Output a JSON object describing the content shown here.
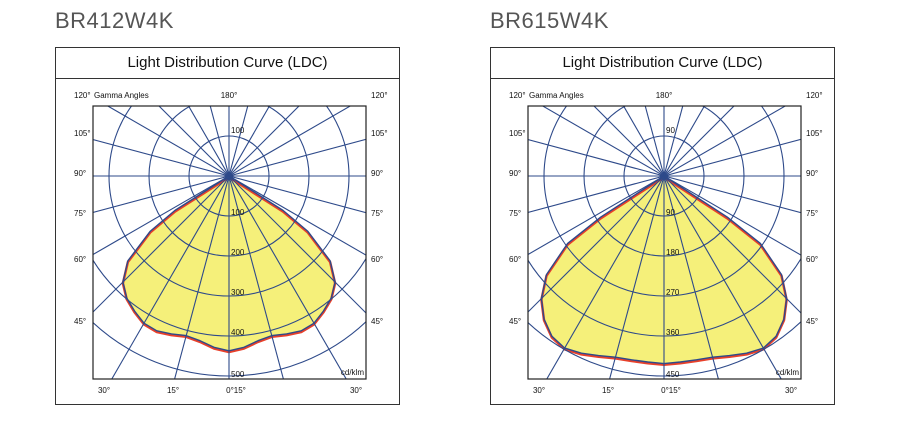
{
  "chart_data": [
    {
      "type": "polar",
      "product": "BR412W4K",
      "title": "Light Distribution Curve (LDC)",
      "axis_caption": "Gamma Angles",
      "unit": "cd/klm",
      "radial_ticks": [
        100,
        200,
        300,
        400,
        500
      ],
      "top_ring_label": "100",
      "angle_labels": {
        "top_left": "120°",
        "top_center": "180°",
        "top_right": "120°",
        "side": [
          "105°",
          "90°",
          "75°",
          "60°",
          "45°"
        ],
        "bottom": [
          "30°",
          "15°",
          "0°15°",
          "30°"
        ]
      },
      "symmetric": true,
      "gamma": [
        0,
        5,
        10,
        15,
        20,
        25,
        30,
        35,
        40,
        45,
        50,
        55,
        57.5,
        58
      ],
      "values": [
        437,
        430,
        418,
        413,
        420,
        427,
        425,
        412,
        398,
        375,
        330,
        240,
        160,
        0
      ],
      "colors": {
        "fill": "#f5f07a",
        "outline": "#2e4a8a",
        "secondary_outline": "#e8402a",
        "grid": "#2e4a8a"
      }
    },
    {
      "type": "polar",
      "product": "BR615W4K",
      "title": "Light Distribution Curve (LDC)",
      "axis_caption": "Gamma Angles",
      "unit": "cd/klm",
      "radial_ticks": [
        90,
        180,
        270,
        360,
        450
      ],
      "top_ring_label": "90",
      "angle_labels": {
        "top_left": "120°",
        "top_center": "180°",
        "top_right": "120°",
        "side": [
          "105°",
          "90°",
          "75°",
          "60°",
          "45°"
        ],
        "bottom": [
          "30°",
          "15°",
          "0°15°",
          "30°"
        ]
      },
      "symmetric": true,
      "gamma": [
        0,
        5,
        10,
        15,
        20,
        25,
        30,
        35,
        40,
        45,
        50,
        55,
        57,
        57.5
      ],
      "values": [
        422,
        420,
        420,
        422,
        430,
        440,
        447,
        440,
        420,
        390,
        345,
        265,
        170,
        0
      ],
      "colors": {
        "fill": "#f5f07a",
        "outline": "#2e4a8a",
        "secondary_outline": "#e8402a",
        "grid": "#2e4a8a"
      }
    }
  ]
}
